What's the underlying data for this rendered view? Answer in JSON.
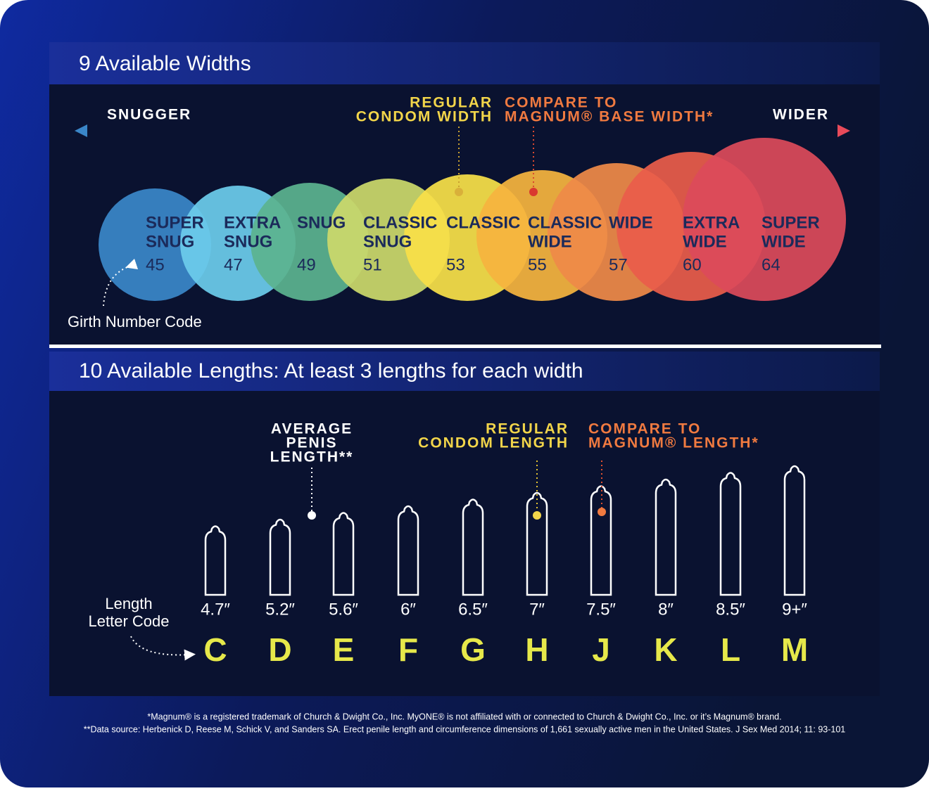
{
  "widths": {
    "title": "9 Available Widths",
    "left_label": "SNUGGER",
    "right_label": "WIDER",
    "regular_note": [
      "REGULAR",
      "CONDOM WIDTH"
    ],
    "magnum_note": [
      "COMPARE TO",
      "MAGNUM® BASE WIDTH*"
    ],
    "code_note": "Girth Number Code",
    "circles": [
      {
        "name": [
          "SUPER",
          "SNUG"
        ],
        "code": 45,
        "color": "#3a86c8"
      },
      {
        "name": [
          "EXTRA",
          "SNUG"
        ],
        "code": 47,
        "color": "#6ccbeb"
      },
      {
        "name": [
          "SNUG"
        ],
        "code": 49,
        "color": "#5bb38f"
      },
      {
        "name": [
          "CLASSIC",
          "SNUG"
        ],
        "code": 51,
        "color": "#cbd86a"
      },
      {
        "name": [
          "CLASSIC"
        ],
        "code": 53,
        "color": "#f7e048"
      },
      {
        "name": [
          "CLASSIC",
          "WIDE"
        ],
        "code": 55,
        "color": "#f5b43e"
      },
      {
        "name": [
          "WIDE"
        ],
        "code": 57,
        "color": "#ef8a48"
      },
      {
        "name": [
          "EXTRA",
          "WIDE"
        ],
        "code": 60,
        "color": "#ea5d4a"
      },
      {
        "name": [
          "SUPER",
          "WIDE"
        ],
        "code": 64,
        "color": "#dc4a5a"
      }
    ]
  },
  "lengths": {
    "title": "10 Available Lengths: At least 3 lengths for each width",
    "average_note": [
      "AVERAGE",
      "PENIS",
      "LENGTH**"
    ],
    "regular_note": [
      "REGULAR",
      "CONDOM LENGTH"
    ],
    "magnum_note": [
      "COMPARE TO",
      "MAGNUM® LENGTH*"
    ],
    "code_note": [
      "Length",
      "Letter Code"
    ],
    "items": [
      {
        "size": "4.7″",
        "letter": "C"
      },
      {
        "size": "5.2″",
        "letter": "D"
      },
      {
        "size": "5.6″",
        "letter": "E"
      },
      {
        "size": "6″",
        "letter": "F"
      },
      {
        "size": "6.5″",
        "letter": "G"
      },
      {
        "size": "7″",
        "letter": "H"
      },
      {
        "size": "7.5″",
        "letter": "J"
      },
      {
        "size": "8″",
        "letter": "K"
      },
      {
        "size": "8.5″",
        "letter": "L"
      },
      {
        "size": "9+″",
        "letter": "M"
      }
    ]
  },
  "footnotes": [
    "*Magnum® is a registered trademark of Church & Dwight Co., Inc. MyONE® is not affiliated with or connected to Church & Dwight Co., Inc. or it’s Magnum® brand.",
    "**Data source: Herbenick D, Reese M, Schick V, and Sanders SA. Erect penile length and circumference dimensions of 1,661 sexually active men in the United States. J Sex Med 2014; 11: 93-101"
  ]
}
